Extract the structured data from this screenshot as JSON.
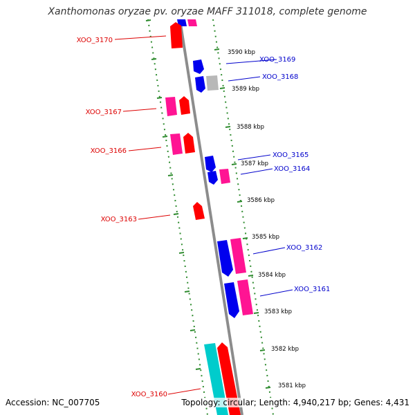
{
  "title": "Xanthomonas oryzae pv. oryzae MAFF 311018, complete genome",
  "footer": {
    "accession": "Accession: NC_007705",
    "stats": "Topology: circular; Length: 4,940,217 bp; Genes: 4,431"
  },
  "colors": {
    "backbone": "#8c8c8c",
    "ruler": "#2e8b2e",
    "forward_gene": "#ff0000",
    "forward_gene_alt": "#ff1493",
    "reverse_gene": "#0000ee",
    "pseudo_gene": "#b8b8b8",
    "rna_gene": "#00cccc",
    "left_label": "#dd0000",
    "right_label": "#0000cc"
  },
  "ruler_labels": [
    {
      "kbp": 3590,
      "text": "3590 kbp"
    },
    {
      "kbp": 3589,
      "text": "3589 kbp"
    },
    {
      "kbp": 3588,
      "text": "3588 kbp"
    },
    {
      "kbp": 3587,
      "text": "3587 kbp"
    },
    {
      "kbp": 3586,
      "text": "3586 kbp"
    },
    {
      "kbp": 3585,
      "text": "3585 kbp"
    },
    {
      "kbp": 3584,
      "text": "3584 kbp"
    },
    {
      "kbp": 3583,
      "text": "3583 kbp"
    },
    {
      "kbp": 3582,
      "text": "3582 kbp"
    },
    {
      "kbp": 3581,
      "text": "3581 kbp"
    }
  ],
  "gene_labels": [
    {
      "name": "XOO_3170",
      "side": "left"
    },
    {
      "name": "XOO_3169",
      "side": "right"
    },
    {
      "name": "XOO_3168",
      "side": "right"
    },
    {
      "name": "XOO_3167",
      "side": "left"
    },
    {
      "name": "XOO_3166",
      "side": "left"
    },
    {
      "name": "XOO_3165",
      "side": "right"
    },
    {
      "name": "XOO_3164",
      "side": "right"
    },
    {
      "name": "XOO_3163",
      "side": "left"
    },
    {
      "name": "XOO_3162",
      "side": "right"
    },
    {
      "name": "XOO_3161",
      "side": "right"
    },
    {
      "name": "XOO_3160",
      "side": "left"
    }
  ]
}
